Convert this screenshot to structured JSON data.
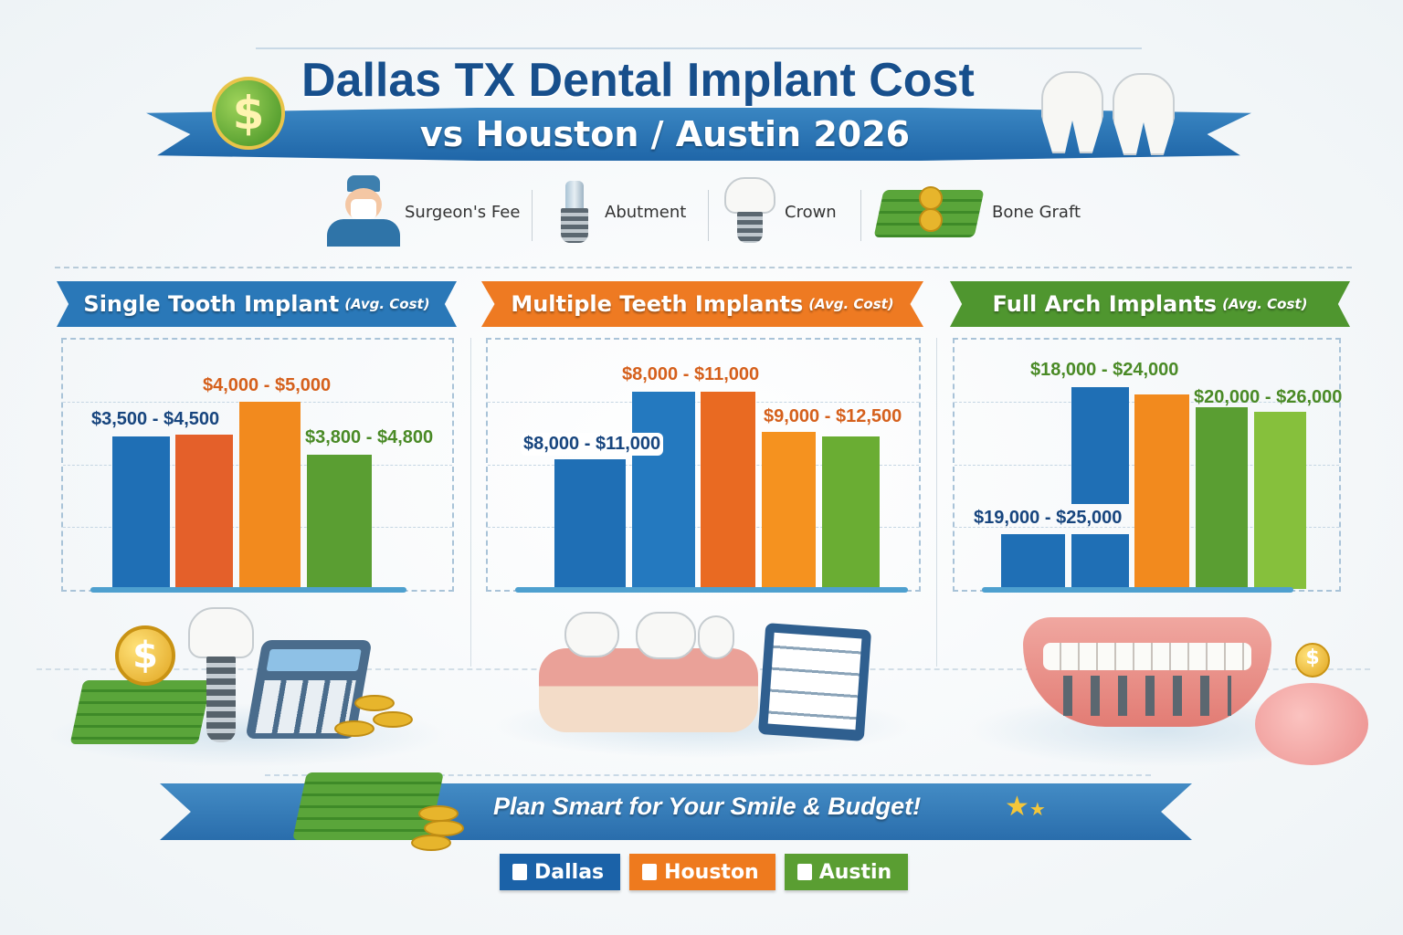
{
  "header": {
    "title": "Dallas TX Dental Implant Cost",
    "subtitle": "vs Houston / Austin 2026",
    "coin_symbol": "$"
  },
  "cost_factors": [
    {
      "label": "Surgeon's Fee",
      "icon": "surgeon-icon"
    },
    {
      "label": "Abutment",
      "icon": "abutment-icon"
    },
    {
      "label": "Crown",
      "icon": "crown-icon"
    },
    {
      "label": "Bone Graft",
      "icon": "money-icon"
    }
  ],
  "colors": {
    "dallas": "#1f6fb5",
    "houston_dark": "#e4602a",
    "houston": "#f28a1e",
    "austin": "#5a9e32",
    "austin_light": "#7ab83a",
    "navy": "#17457e",
    "orange_text": "#d5601c",
    "green_text": "#4a8a26"
  },
  "chart_data": [
    {
      "type": "bar",
      "title": "Single Tooth Implant",
      "title_note": "(Avg. Cost)",
      "header_color": "#2a78b8",
      "axis": "none (relative bar heights, fraction of plot height)",
      "bars": [
        {
          "color": "#1f6fb5",
          "value": 0.61
        },
        {
          "color": "#e4602a",
          "value": 0.62
        },
        {
          "color": "#f28a1e",
          "value": 0.75
        },
        {
          "color": "#5a9e32",
          "value": 0.54
        }
      ],
      "labels": [
        "$3,500 - $4,500",
        "$4,000 - $5,000",
        "$3,800 - $4,800"
      ]
    },
    {
      "type": "bar",
      "title": "Multiple Teeth Implants",
      "title_note": "(Avg. Cost)",
      "header_color": "#ee7a22",
      "axis": "none (relative bar heights, fraction of plot height)",
      "bars": [
        {
          "color": "#1f6fb5",
          "value": 0.52
        },
        {
          "color": "#2479bf",
          "value": 0.79
        },
        {
          "color": "#e96a22",
          "value": 0.79
        },
        {
          "color": "#f5921f",
          "value": 0.63
        },
        {
          "color": "#6aad33",
          "value": 0.61
        }
      ],
      "labels": [
        "$8,000 - $11,000",
        "$8,000 - $11,000",
        "$9,000 - $12,500"
      ]
    },
    {
      "type": "bar",
      "title": "Full Arch Implants",
      "title_note": "(Avg. Cost)",
      "header_color": "#4f962f",
      "axis": "none (relative bar heights, fraction of plot height)",
      "bars": [
        {
          "color": "#1f6fb5",
          "value": 0.22
        },
        {
          "color": "#1f6fb5",
          "value": 0.22,
          "upper_segment": [
            0.34,
            0.81
          ]
        },
        {
          "color": "#f28a1e",
          "value": 0.78
        },
        {
          "color": "#5a9e32",
          "value": 0.73
        },
        {
          "color": "#86c03c",
          "value": 0.71
        }
      ],
      "labels": [
        "$19,000 - $25,000",
        "$18,000 - $24,000",
        "$20,000 - $26,000"
      ]
    }
  ],
  "footer": {
    "slogan": "Plan Smart for Your Smile & Budget!",
    "legend": [
      {
        "label": "Dallas",
        "color": "#1b62a8"
      },
      {
        "label": "Houston",
        "color": "#ee7a1e"
      },
      {
        "label": "Austin",
        "color": "#5a9e32"
      }
    ]
  }
}
